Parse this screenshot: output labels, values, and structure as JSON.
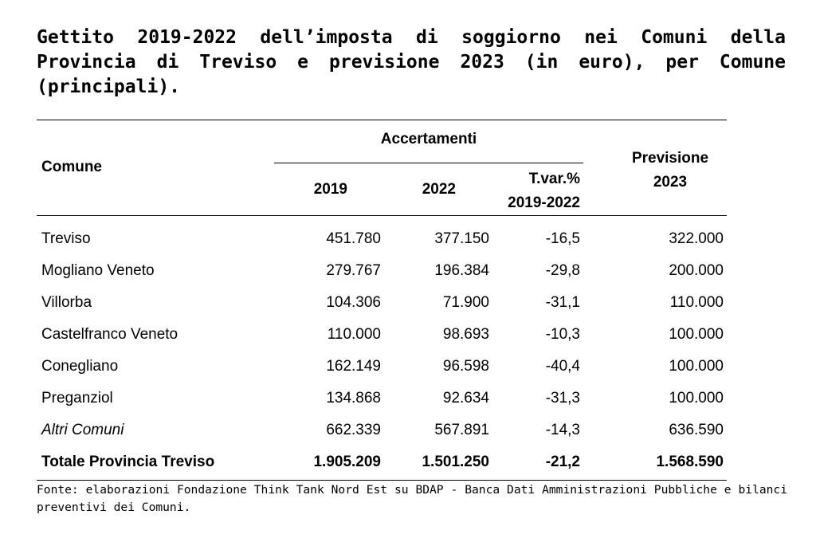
{
  "title": "Gettito 2019-2022 dell’imposta di soggiorno nei Comuni della Provincia di Treviso e previsione 2023 (in euro), per Comune (principali).",
  "table": {
    "header": {
      "comune": "Comune",
      "accertamenti": "Accertamenti",
      "previsione_line1": "Previsione",
      "previsione_line2": "2023",
      "col_2019": "2019",
      "col_2022": "2022",
      "tvar_line1": "T.var.%",
      "tvar_line2": "2019-2022"
    },
    "rows": [
      {
        "comune": "Treviso",
        "v2019": "451.780",
        "v2022": "377.150",
        "tvar": "-16,5",
        "prev2023": "322.000"
      },
      {
        "comune": "Mogliano Veneto",
        "v2019": "279.767",
        "v2022": "196.384",
        "tvar": "-29,8",
        "prev2023": "200.000"
      },
      {
        "comune": "Villorba",
        "v2019": "104.306",
        "v2022": "71.900",
        "tvar": "-31,1",
        "prev2023": "110.000"
      },
      {
        "comune": "Castelfranco Veneto",
        "v2019": "110.000",
        "v2022": "98.693",
        "tvar": "-10,3",
        "prev2023": "100.000"
      },
      {
        "comune": "Conegliano",
        "v2019": "162.149",
        "v2022": "96.598",
        "tvar": "-40,4",
        "prev2023": "100.000"
      },
      {
        "comune": "Preganziol",
        "v2019": "134.868",
        "v2022": "92.634",
        "tvar": "-31,3",
        "prev2023": "100.000"
      },
      {
        "comune": "Altri Comuni",
        "v2019": "662.339",
        "v2022": "567.891",
        "tvar": "-14,3",
        "prev2023": "636.590"
      }
    ],
    "total": {
      "comune": "Totale Provincia Treviso",
      "v2019": "1.905.209",
      "v2022": "1.501.250",
      "tvar": "-21,2",
      "prev2023": "1.568.590"
    }
  },
  "source": "Fonte: elaborazioni Fondazione Think Tank Nord Est su BDAP - Banca Dati Amministrazioni Pubbliche e bilanci preventivi dei Comuni."
}
